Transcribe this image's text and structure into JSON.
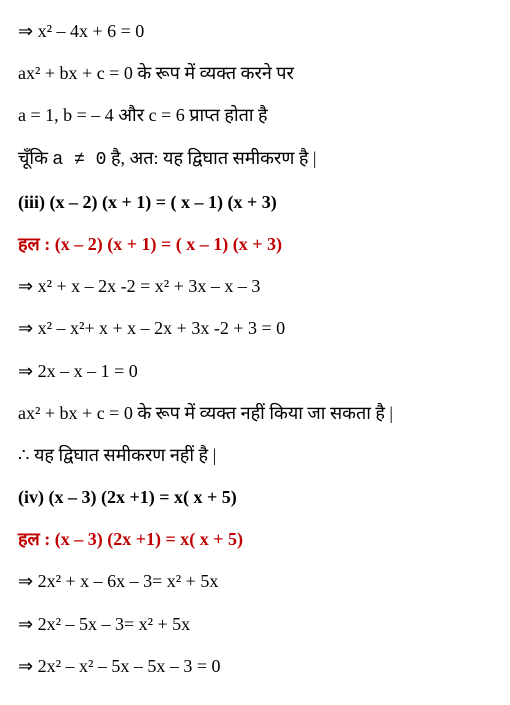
{
  "lines": [
    {
      "text": "⇒ x² – 4x + 6 = 0",
      "cls": ""
    },
    {
      "text": "ax² + bx + c = 0 के रूप में व्यक्त करने पर",
      "cls": ""
    },
    {
      "text": "a = 1, b = – 4 और c = 6 प्राप्त होता है",
      "cls": ""
    },
    {
      "text": "चूँकि a ≠ 0 है, अत: यह द्विघात समीकरण है |",
      "cls": "",
      "mono_a": true
    },
    {
      "text": "(iii) (x – 2) (x + 1) = ( x – 1) (x + 3)",
      "cls": "bold"
    },
    {
      "text": "हल : ",
      "cls": "red",
      "tail": "(x – 2) (x + 1) = ( x – 1) (x + 3)"
    },
    {
      "text": "⇒ x² + x – 2x -2  = x² + 3x – x – 3",
      "cls": ""
    },
    {
      "text": "⇒ x² – x²+ x + x – 2x + 3x -2 + 3 = 0",
      "cls": ""
    },
    {
      "text": "⇒ 2x – x – 1  = 0",
      "cls": ""
    },
    {
      "text": "ax² + bx + c = 0 के रूप में व्यक्त नहीं किया जा सकता  है |",
      "cls": ""
    },
    {
      "text": "∴  यह द्विघात समीकरण नहीं है |",
      "cls": ""
    },
    {
      "text": "(iv) (x – 3) (2x +1) = x( x + 5)",
      "cls": "bold"
    },
    {
      "text": "हल : ",
      "cls": "red",
      "tail": "(x – 3) (2x +1) = x( x + 5)"
    },
    {
      "text": "⇒ 2x² + x – 6x – 3= x² + 5x",
      "cls": ""
    },
    {
      "text": "⇒ 2x² – 5x – 3= x² + 5x",
      "cls": ""
    },
    {
      "text": "⇒  2x² – x² – 5x – 5x – 3  = 0",
      "cls": ""
    }
  ]
}
